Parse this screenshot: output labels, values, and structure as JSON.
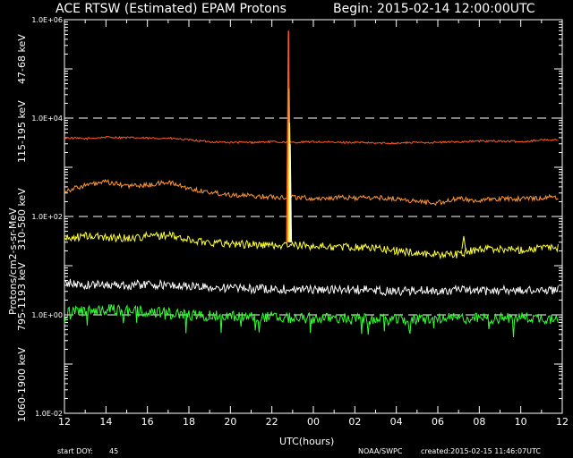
{
  "header": {
    "title": "ACE RTSW (Estimated) EPAM Protons",
    "begin": "Begin: 2015-02-14 12:00:00UTC"
  },
  "footer": {
    "start_doy_label": "start DOY:",
    "start_doy_value": "45",
    "source": "NOAA/SWPC",
    "created": "created:2015-02-15 11:46:07UTC"
  },
  "colors": {
    "background": "#000000",
    "axis": "#ffffff",
    "s47": "#ff5a1e",
    "s115": "#ff9632",
    "s310": "#ffff32",
    "s795": "#ffffff",
    "s1060": "#32ff32"
  },
  "chart_data": {
    "type": "line",
    "xlabel": "UTC(hours)",
    "ylabel": "Protons/cm2-s-sr-MeV",
    "ylog": true,
    "ylim": [
      0.01,
      1000000
    ],
    "xlim_hours": [
      12,
      36
    ],
    "xticks": [
      "12",
      "14",
      "16",
      "18",
      "20",
      "22",
      "00",
      "02",
      "04",
      "06",
      "08",
      "10",
      "12"
    ],
    "yticks": [
      "1.0E-02",
      "1.0E+00",
      "1.0E+02",
      "1.0E+04",
      "1.0E+06"
    ],
    "reference_lines": [
      1,
      100,
      10000
    ],
    "series": [
      {
        "name": "47-68 keV",
        "color": "#ff5a1e",
        "x": [
          12.0,
          13.0,
          14.0,
          15.0,
          16.0,
          17.0,
          18.0,
          19.0,
          20.0,
          21.0,
          22.0,
          23.0,
          24.0,
          25.0,
          26.0,
          27.0,
          28.0,
          29.0,
          30.0,
          31.0,
          32.0,
          33.0,
          34.0,
          35.0,
          35.8
        ],
        "y": [
          4000,
          3800,
          4100,
          4000,
          3900,
          3900,
          3600,
          3300,
          3200,
          3200,
          3300,
          3200,
          3300,
          3200,
          3200,
          3100,
          3100,
          3200,
          3200,
          3300,
          3400,
          3400,
          3300,
          3600,
          3600
        ]
      },
      {
        "name": "115-195 keV",
        "color": "#ff9632",
        "x": [
          12.0,
          13.0,
          14.0,
          15.0,
          16.0,
          17.0,
          18.0,
          19.0,
          20.0,
          21.0,
          22.0,
          23.0,
          24.0,
          25.0,
          26.0,
          27.0,
          28.0,
          29.0,
          30.0,
          31.0,
          32.0,
          33.0,
          34.0,
          35.0,
          35.8
        ],
        "y": [
          330,
          430,
          500,
          420,
          430,
          500,
          370,
          310,
          280,
          260,
          250,
          250,
          230,
          240,
          240,
          240,
          230,
          200,
          190,
          230,
          210,
          230,
          230,
          240,
          250
        ]
      },
      {
        "name": "310-580 keV",
        "color": "#ffff32",
        "x": [
          12.0,
          13.0,
          14.0,
          15.0,
          16.0,
          17.0,
          18.0,
          19.0,
          20.0,
          21.0,
          22.0,
          23.0,
          24.0,
          25.0,
          26.0,
          27.0,
          28.0,
          29.0,
          30.0,
          31.0,
          32.0,
          33.0,
          34.0,
          35.0,
          35.8
        ],
        "y": [
          35,
          40,
          38,
          36,
          40,
          42,
          33,
          30,
          28,
          27,
          26,
          26,
          25,
          24,
          24,
          23,
          20,
          18,
          17,
          17,
          22,
          22,
          21,
          23,
          23
        ]
      },
      {
        "name": "795-1193 keV",
        "color": "#ffffff",
        "x": [
          12.0,
          13.0,
          14.0,
          15.0,
          16.0,
          17.0,
          18.0,
          19.0,
          20.0,
          21.0,
          22.0,
          23.0,
          24.0,
          25.0,
          26.0,
          27.0,
          28.0,
          29.0,
          30.0,
          31.0,
          32.0,
          33.0,
          34.0,
          35.0,
          35.8
        ],
        "y": [
          4.5,
          4.0,
          4.2,
          4.0,
          4.2,
          4.0,
          3.8,
          3.6,
          3.5,
          3.4,
          3.4,
          3.3,
          3.3,
          3.2,
          3.3,
          3.1,
          3.0,
          3.1,
          3.1,
          3.2,
          3.0,
          3.2,
          3.1,
          3.2,
          3.2
        ]
      },
      {
        "name": "1060-1900 keV",
        "color": "#32ff32",
        "x": [
          12.0,
          13.0,
          14.0,
          15.0,
          16.0,
          17.0,
          18.0,
          19.0,
          20.0,
          21.0,
          22.0,
          23.0,
          24.0,
          25.0,
          26.0,
          27.0,
          28.0,
          29.0,
          30.0,
          31.0,
          32.0,
          33.0,
          34.0,
          35.0,
          35.8
        ],
        "y": [
          1.1,
          1.2,
          1.3,
          1.2,
          1.2,
          1.1,
          1.0,
          0.95,
          0.95,
          0.9,
          0.9,
          0.85,
          0.85,
          0.85,
          0.85,
          0.8,
          0.8,
          0.8,
          0.85,
          0.85,
          0.85,
          0.85,
          0.9,
          0.85,
          0.85
        ]
      }
    ]
  }
}
